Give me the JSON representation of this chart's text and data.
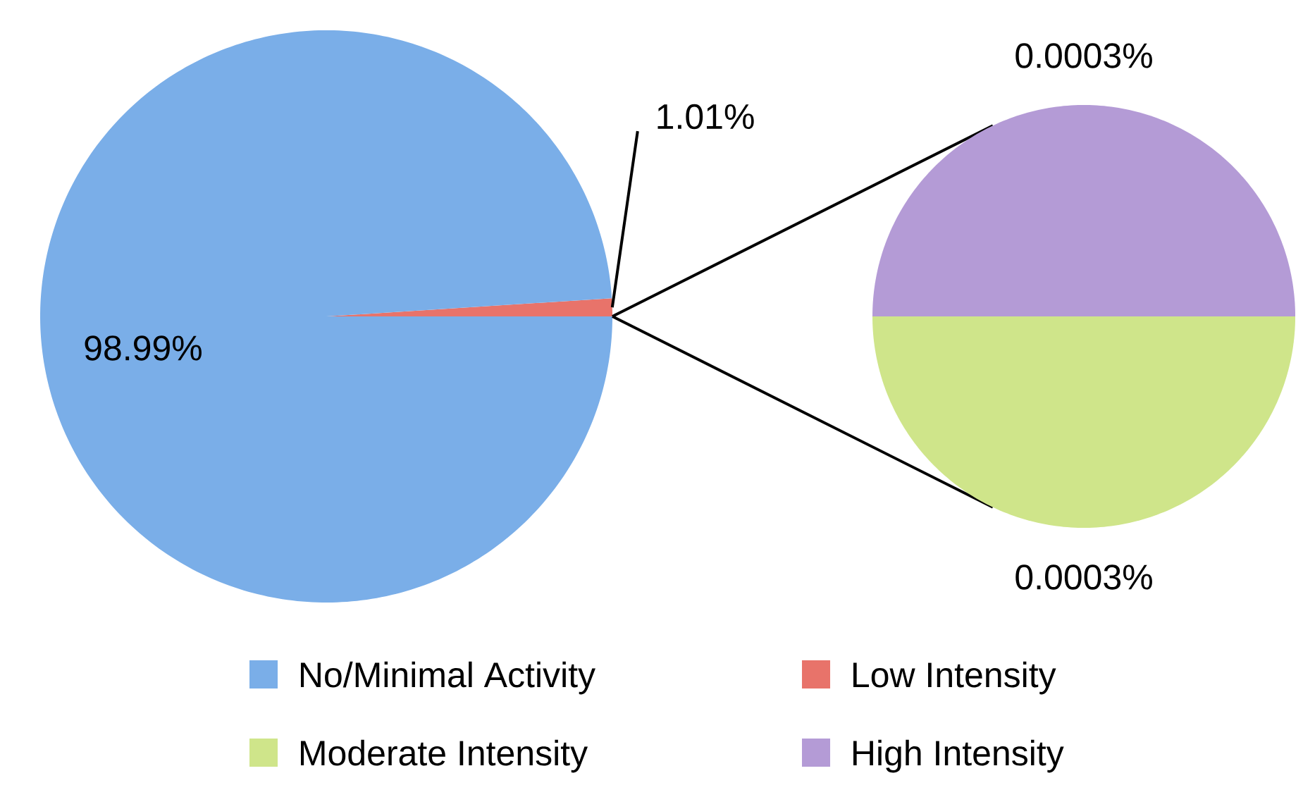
{
  "chart_data": [
    {
      "type": "pie",
      "categories": [
        "No/Minimal Activity",
        "Low Intensity"
      ],
      "values": [
        98.99,
        1.01
      ],
      "colors": [
        "#7aaee8",
        "#e8736a"
      ],
      "value_labels": [
        "98.99%",
        "1.01%"
      ],
      "legend": "bottom"
    },
    {
      "type": "pie",
      "categories": [
        "Moderate Intensity",
        "High Intensity"
      ],
      "values": [
        0.0003,
        0.0003
      ],
      "colors": [
        "#cfe58a",
        "#b49bd6"
      ],
      "value_labels": [
        "0.0003%",
        "0.0003%"
      ],
      "legend": "bottom"
    }
  ]
}
